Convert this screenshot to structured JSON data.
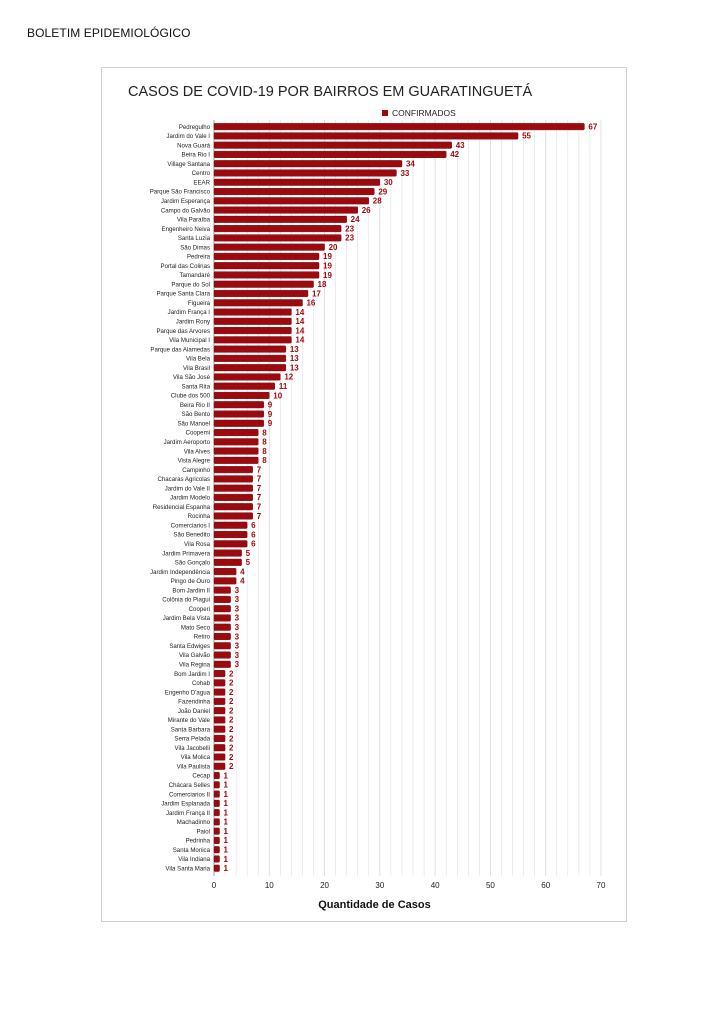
{
  "header": {
    "text": "BOLETIM EPIDEMIOLÓGICO"
  },
  "colors": {
    "bar": "#9b0a0f",
    "bar_edge": "#6e0508",
    "label": "#9b0a0f",
    "grid": "#d9d9d9"
  },
  "chart_data": {
    "type": "bar",
    "orientation": "horizontal",
    "title": "CASOS DE COVID-19 POR BAIRROS EM GUARATINGUETÁ",
    "xlabel": "Quantidade de Casos",
    "ylabel": "",
    "xlim": [
      0,
      70
    ],
    "xticks": [
      0,
      10,
      20,
      30,
      40,
      50,
      60,
      70
    ],
    "grid": true,
    "legend_position": "top-right",
    "series": [
      {
        "name": "CONFIRMADOS"
      }
    ],
    "categories": [
      "Pedregulho",
      "Jardim do Vale I",
      "Nova Guará",
      "Beira Rio I",
      "Village Santana",
      "Centro",
      "EEAR",
      "Parque São Francisco",
      "Jardim Esperança",
      "Campo do Galvão",
      "Vila Paraíba",
      "Engenheiro Neiva",
      "Santa Luzia",
      "São Dimas",
      "Pedreira",
      "Portal das Colinas",
      "Tamandaré",
      "Parque do Sol",
      "Parque Santa Clara",
      "Figueira",
      "Jardim França I",
      "Jardim Rony",
      "Parque das Arvores",
      "Vila Municipal I",
      "Parque das Alamedas",
      "Vila Bela",
      "Vila Brasil",
      "Vila São José",
      "Santa Rita",
      "Clube dos 500",
      "Beira Rio II",
      "São Bento",
      "São Manoel",
      "Coopemi",
      "Jardim Aeroporto",
      "Vila Alves",
      "Vista Alegre",
      "Campinho",
      "Chacaras Agricolas",
      "Jardim do Vale II",
      "Jardim Modelo",
      "Residencial Espanha",
      "Rocinha",
      "Comerciarios I",
      "São Benedito",
      "Vila Rosa",
      "Jardim Primavera",
      "São Gonçalo",
      "Jardim Independência",
      "Pingo de Ouro",
      "Bom Jardim II",
      "Colônia do Piagui",
      "Cooperi",
      "Jardim Bela Vista",
      "Mato Seco",
      "Retiro",
      "Santa Edwiges",
      "Vila Galvão",
      "Vila Regina",
      "Bom Jardim I",
      "Cohab",
      "Engenho D'agua",
      "Fazendinha",
      "João Daniel",
      "Mirante do Vale",
      "Santa Barbara",
      "Serra Pelada",
      "Vila Jacobelli",
      "Vila Molica",
      "Vila Paulista",
      "Cecap",
      "Chácara Selles",
      "Comerciarios II",
      "Jardim Esplanada",
      "Jardim França II",
      "Machadinho",
      "Paiol",
      "Pedrinha",
      "Santa Monica",
      "Vila Indiana",
      "Vila Santa Maria"
    ],
    "values": [
      67,
      55,
      43,
      42,
      34,
      33,
      30,
      29,
      28,
      26,
      24,
      23,
      23,
      20,
      19,
      19,
      19,
      18,
      17,
      16,
      14,
      14,
      14,
      14,
      13,
      13,
      13,
      12,
      11,
      10,
      9,
      9,
      9,
      8,
      8,
      8,
      8,
      7,
      7,
      7,
      7,
      7,
      7,
      6,
      6,
      6,
      5,
      5,
      4,
      4,
      3,
      3,
      3,
      3,
      3,
      3,
      3,
      3,
      3,
      2,
      2,
      2,
      2,
      2,
      2,
      2,
      2,
      2,
      2,
      2,
      1,
      1,
      1,
      1,
      1,
      1,
      1,
      1,
      1,
      1,
      1
    ]
  }
}
